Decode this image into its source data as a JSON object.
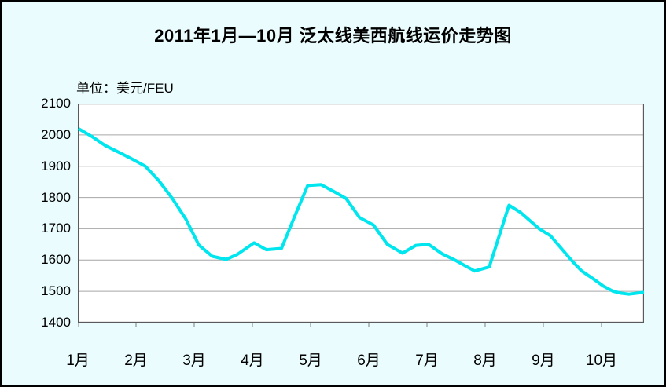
{
  "title": "2011年1月—10月 泛太线美西航线运价走势图",
  "unit_label": "单位：美元/FEU",
  "colors": {
    "background": "#EAFCFE",
    "plot_background": "#FFFFFF",
    "line": "#00E6EE",
    "gridline": "#A6A6A6",
    "axis_frame": "#5A5A5A",
    "tick": "#808080",
    "text": "#000000",
    "outer_border": "#000000"
  },
  "chart_data": {
    "type": "line",
    "title": "2011年1月—10月 泛太线美西航线运价走势图",
    "ylabel": "单位：美元/FEU",
    "xlabel": "",
    "ylim": [
      1400,
      2100
    ],
    "y_ticks": [
      1400,
      1500,
      1600,
      1700,
      1800,
      1900,
      2000,
      2100
    ],
    "y_tick_labels": [
      "1400",
      "1500",
      "1600",
      "1700",
      "1800",
      "1900",
      "2000",
      "2100"
    ],
    "x_range": [
      1,
      10.73
    ],
    "x_tick_positions": [
      1,
      2,
      3,
      4,
      5,
      6,
      7,
      8,
      9,
      10
    ],
    "x_tick_labels": [
      "1月",
      "2月",
      "3月",
      "4月",
      "5月",
      "6月",
      "7月",
      "8月",
      "9月",
      "10月"
    ],
    "grid": "horizontal",
    "legend": "none",
    "series": [
      {
        "points": [
          [
            1.01,
            2020
          ],
          [
            1.24,
            1995
          ],
          [
            1.47,
            1966
          ],
          [
            1.7,
            1945
          ],
          [
            1.93,
            1923
          ],
          [
            2.16,
            1900
          ],
          [
            2.39,
            1854
          ],
          [
            2.62,
            1798
          ],
          [
            2.86,
            1730
          ],
          [
            3.08,
            1648
          ],
          [
            3.31,
            1612
          ],
          [
            3.55,
            1602
          ],
          [
            3.74,
            1618
          ],
          [
            4.03,
            1655
          ],
          [
            4.24,
            1633
          ],
          [
            4.5,
            1637
          ],
          [
            4.72,
            1737
          ],
          [
            4.95,
            1838
          ],
          [
            5.18,
            1841
          ],
          [
            5.41,
            1818
          ],
          [
            5.61,
            1797
          ],
          [
            5.84,
            1736
          ],
          [
            6.08,
            1712
          ],
          [
            6.32,
            1650
          ],
          [
            6.58,
            1622
          ],
          [
            6.81,
            1647
          ],
          [
            7.03,
            1650
          ],
          [
            7.26,
            1620
          ],
          [
            7.5,
            1598
          ],
          [
            7.82,
            1565
          ],
          [
            8.07,
            1578
          ],
          [
            8.41,
            1775
          ],
          [
            8.61,
            1752
          ],
          [
            8.93,
            1700
          ],
          [
            9.12,
            1678
          ],
          [
            9.31,
            1637
          ],
          [
            9.49,
            1598
          ],
          [
            9.66,
            1565
          ],
          [
            9.85,
            1541
          ],
          [
            10.03,
            1517
          ],
          [
            10.2,
            1500
          ],
          [
            10.34,
            1494
          ],
          [
            10.47,
            1491
          ],
          [
            10.73,
            1497
          ]
        ]
      }
    ]
  }
}
